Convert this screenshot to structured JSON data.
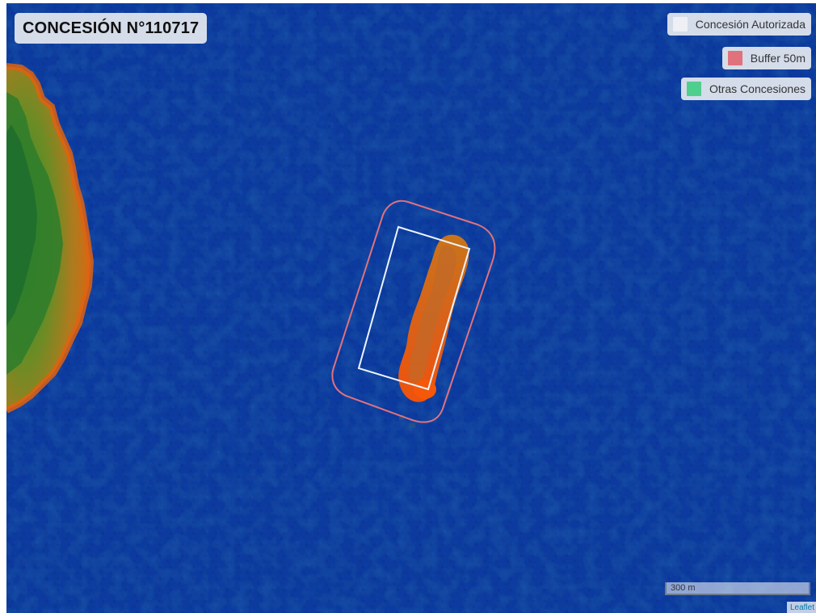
{
  "map": {
    "title": "CONCESIÓN N°110717",
    "legend": [
      {
        "label": "Concesión Autorizada",
        "color": "#eef0f5"
      },
      {
        "label": "Buffer 50m",
        "color": "#e0727c"
      },
      {
        "label": "Otras Concesiones",
        "color": "#4fcf8e"
      }
    ],
    "scale_label": "300 m",
    "attribution": "Leaflet"
  }
}
